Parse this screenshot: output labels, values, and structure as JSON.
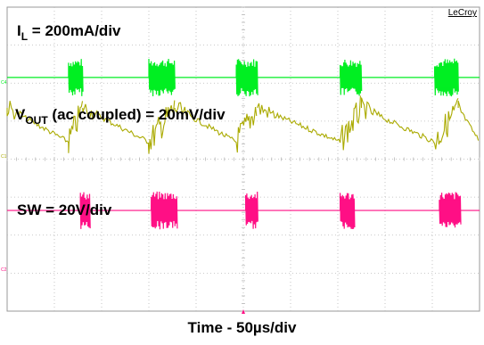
{
  "brand": "LeCroy",
  "trace_labels": {
    "il_main": "I",
    "il_sub": "L",
    "il_rest": " = 200mA/div",
    "vout_main": "V",
    "vout_sub": "OUT",
    "vout_rest": " (ac coupled) = 20mV/div",
    "sw": "SW = 20V/div"
  },
  "channel_markers": {
    "il": "C4",
    "vout": "C1",
    "sw": "C2"
  },
  "xlabel": "Time - 50µs/div",
  "colors": {
    "il": "#00ee22",
    "vout": "#aaaa00",
    "sw": "#ff0f85",
    "grid": "#b8b8b8",
    "frame": "#999999",
    "trigger_marker": "#ff0f85"
  },
  "chart_data": {
    "type": "line",
    "x_divisions": 10,
    "y_divisions": 8,
    "x_unit": "div",
    "grid": true,
    "series": [
      {
        "key": "il",
        "bursts": [
          [
            1.3,
            1.6
          ],
          [
            3.0,
            3.55
          ],
          [
            4.85,
            5.3
          ],
          [
            7.05,
            7.5
          ],
          [
            9.05,
            9.55
          ]
        ],
        "baseline_div": 1.85,
        "burst_half_height_div": 0.5
      },
      {
        "key": "vout",
        "ramps": [
          [
            0.0,
            1.3
          ],
          [
            1.6,
            3.0
          ],
          [
            3.55,
            4.85
          ],
          [
            5.3,
            7.05
          ],
          [
            7.5,
            9.05
          ],
          [
            9.55,
            10.0
          ]
        ],
        "ramp_start_div": 2.65,
        "ramp_end_div": 3.55,
        "noise_half_div": 0.28
      },
      {
        "key": "sw",
        "bursts": [
          [
            1.55,
            1.75
          ],
          [
            3.05,
            3.6
          ],
          [
            5.05,
            5.3
          ],
          [
            7.05,
            7.35
          ],
          [
            9.15,
            9.6
          ]
        ],
        "baseline_div": 5.35,
        "burst_half_height_div": 0.5
      }
    ]
  }
}
